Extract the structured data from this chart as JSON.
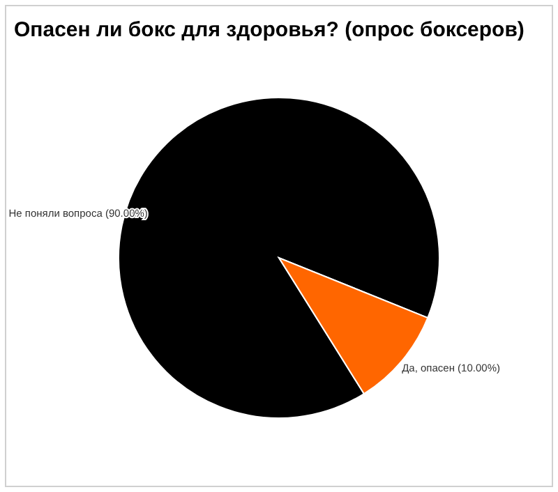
{
  "chart_data": {
    "type": "pie",
    "title": "Опасен ли бокс для здоровья? (опрос боксеров)",
    "categories": [
      "Не поняли вопроса",
      "Да, опасен"
    ],
    "values": [
      90,
      10
    ],
    "colors": [
      "#000000",
      "#ff6600"
    ],
    "value_labels": [
      "(90.00%)",
      "(10.00%)"
    ],
    "legend": false
  }
}
